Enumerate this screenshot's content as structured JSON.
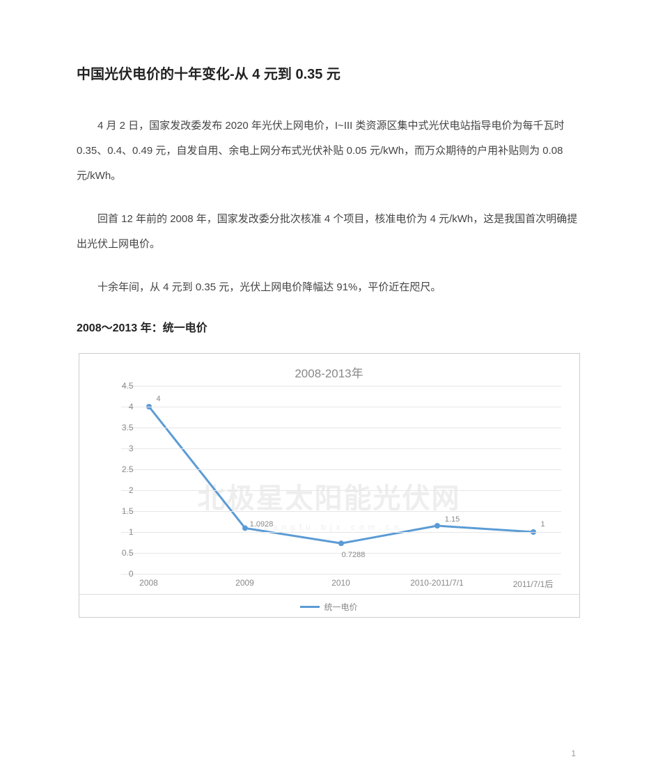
{
  "article": {
    "title": "中国光伏电价的十年变化-从 4 元到 0.35 元",
    "p1": "4 月 2 日，国家发改委发布 2020 年光伏上网电价，I~III 类资源区集中式光伏电站指导电价为每千瓦时 0.35、0.4、0.49 元，自发自用、余电上网分布式光伏补贴 0.05 元/kWh，而万众期待的户用补贴则为 0.08 元/kWh。",
    "p2": "回首 12 年前的 2008 年，国家发改委分批次核准 4 个项目，核准电价为 4 元/kWh，这是我国首次明确提出光伏上网电价。",
    "p3": "十余年间，从 4 元到 0.35 元，光伏上网电价降幅达 91%，平价近在咫尺。",
    "section_heading": "2008～2013 年：统一电价"
  },
  "chart": {
    "type": "line",
    "title": "2008-2013年",
    "title_fontsize": 17,
    "title_color": "#888888",
    "background_color": "#ffffff",
    "border_color": "#cccccc",
    "grid_color": "#e6e6e6",
    "axis_label_color": "#888888",
    "axis_label_fontsize": 12,
    "data_label_fontsize": 11,
    "data_label_color": "#888888",
    "line_color": "#5b9bd5",
    "line_width": 3,
    "marker_style": "circle",
    "marker_radius": 4,
    "marker_fill": "#5b9bd5",
    "ylim": [
      0,
      4.5
    ],
    "ytick_step": 0.5,
    "yticks": [
      "0",
      "0.5",
      "1",
      "1.5",
      "2",
      "2.5",
      "3",
      "3.5",
      "4",
      "4.5"
    ],
    "categories": [
      "2008",
      "2009",
      "2010",
      "2010-2011/7/1",
      "2011/7/1后"
    ],
    "series": [
      {
        "name": "统一电价",
        "values": [
          4,
          1.0928,
          0.7288,
          1.15,
          1
        ],
        "value_labels": [
          "4",
          "1.0928",
          "0.7288",
          "1.15",
          "1"
        ],
        "label_offsets": [
          {
            "dx": 14,
            "dy": 0
          },
          {
            "dx": 24,
            "dy": 6
          },
          {
            "dx": 18,
            "dy": 28
          },
          {
            "dx": 22,
            "dy": 2
          },
          {
            "dx": 14,
            "dy": 0
          }
        ]
      }
    ],
    "legend": {
      "position": "bottom",
      "label": "统一电价"
    },
    "watermark_main": "北极星太阳能光伏网",
    "watermark_sub": "guangfu.bjx.com.cn"
  },
  "page_number": "1"
}
